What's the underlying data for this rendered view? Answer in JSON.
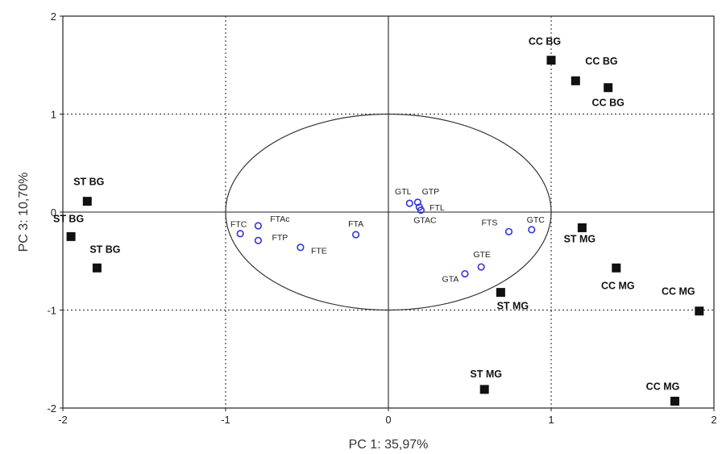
{
  "chart_data": {
    "type": "scatter",
    "xlabel": "PC 1: 35,97%",
    "ylabel": "PC 3: 10,70%",
    "xlim": [
      -2,
      2
    ],
    "ylim": [
      -2,
      2
    ],
    "x_ticks": [
      "-2",
      "-1",
      "0",
      "1",
      "2"
    ],
    "y_ticks": [
      "2",
      "1",
      "0",
      "-1",
      "-2"
    ],
    "grid": "dotted at ±1",
    "correlation_circle": {
      "cx": 0,
      "cy": 0,
      "rx": 1,
      "ry": 1
    },
    "observations": [
      {
        "label": "CC BG",
        "x": 1.0,
        "y": 1.55
      },
      {
        "label": "CC BG",
        "x": 1.15,
        "y": 1.34
      },
      {
        "label": "CC BG",
        "x": 1.35,
        "y": 1.27
      },
      {
        "label": "ST BG",
        "x": -1.85,
        "y": 0.11
      },
      {
        "label": "ST BG",
        "x": -1.95,
        "y": -0.25
      },
      {
        "label": "ST BG",
        "x": -1.79,
        "y": -0.57
      },
      {
        "label": "ST MG",
        "x": 1.19,
        "y": -0.16
      },
      {
        "label": "ST MG",
        "x": 0.69,
        "y": -0.82
      },
      {
        "label": "ST MG",
        "x": 0.59,
        "y": -1.81
      },
      {
        "label": "CC MG",
        "x": 1.4,
        "y": -0.57
      },
      {
        "label": "CC MG",
        "x": 1.91,
        "y": -1.01
      },
      {
        "label": "CC MG",
        "x": 1.76,
        "y": -1.93
      }
    ],
    "variables": [
      {
        "label": "FTC",
        "x": -0.91,
        "y": -0.22
      },
      {
        "label": "FTAc",
        "x": -0.8,
        "y": -0.14
      },
      {
        "label": "FTP",
        "x": -0.8,
        "y": -0.29
      },
      {
        "label": "FTE",
        "x": -0.54,
        "y": -0.36
      },
      {
        "label": "FTA",
        "x": -0.2,
        "y": -0.23
      },
      {
        "label": "GTL",
        "x": 0.13,
        "y": 0.09
      },
      {
        "label": "GTP",
        "x": 0.18,
        "y": 0.1
      },
      {
        "label": "FTL",
        "x": 0.19,
        "y": 0.05
      },
      {
        "label": "GTAC",
        "x": 0.2,
        "y": 0.02
      },
      {
        "label": "FTS",
        "x": 0.74,
        "y": -0.2
      },
      {
        "label": "GTC",
        "x": 0.88,
        "y": -0.18
      },
      {
        "label": "GTE",
        "x": 0.57,
        "y": -0.56
      },
      {
        "label": "GTA",
        "x": 0.47,
        "y": -0.63
      }
    ]
  },
  "colors": {
    "observation_marker": "#111111",
    "variable_marker": "#3333dd",
    "axes": "#222222",
    "grid": "#444444"
  }
}
